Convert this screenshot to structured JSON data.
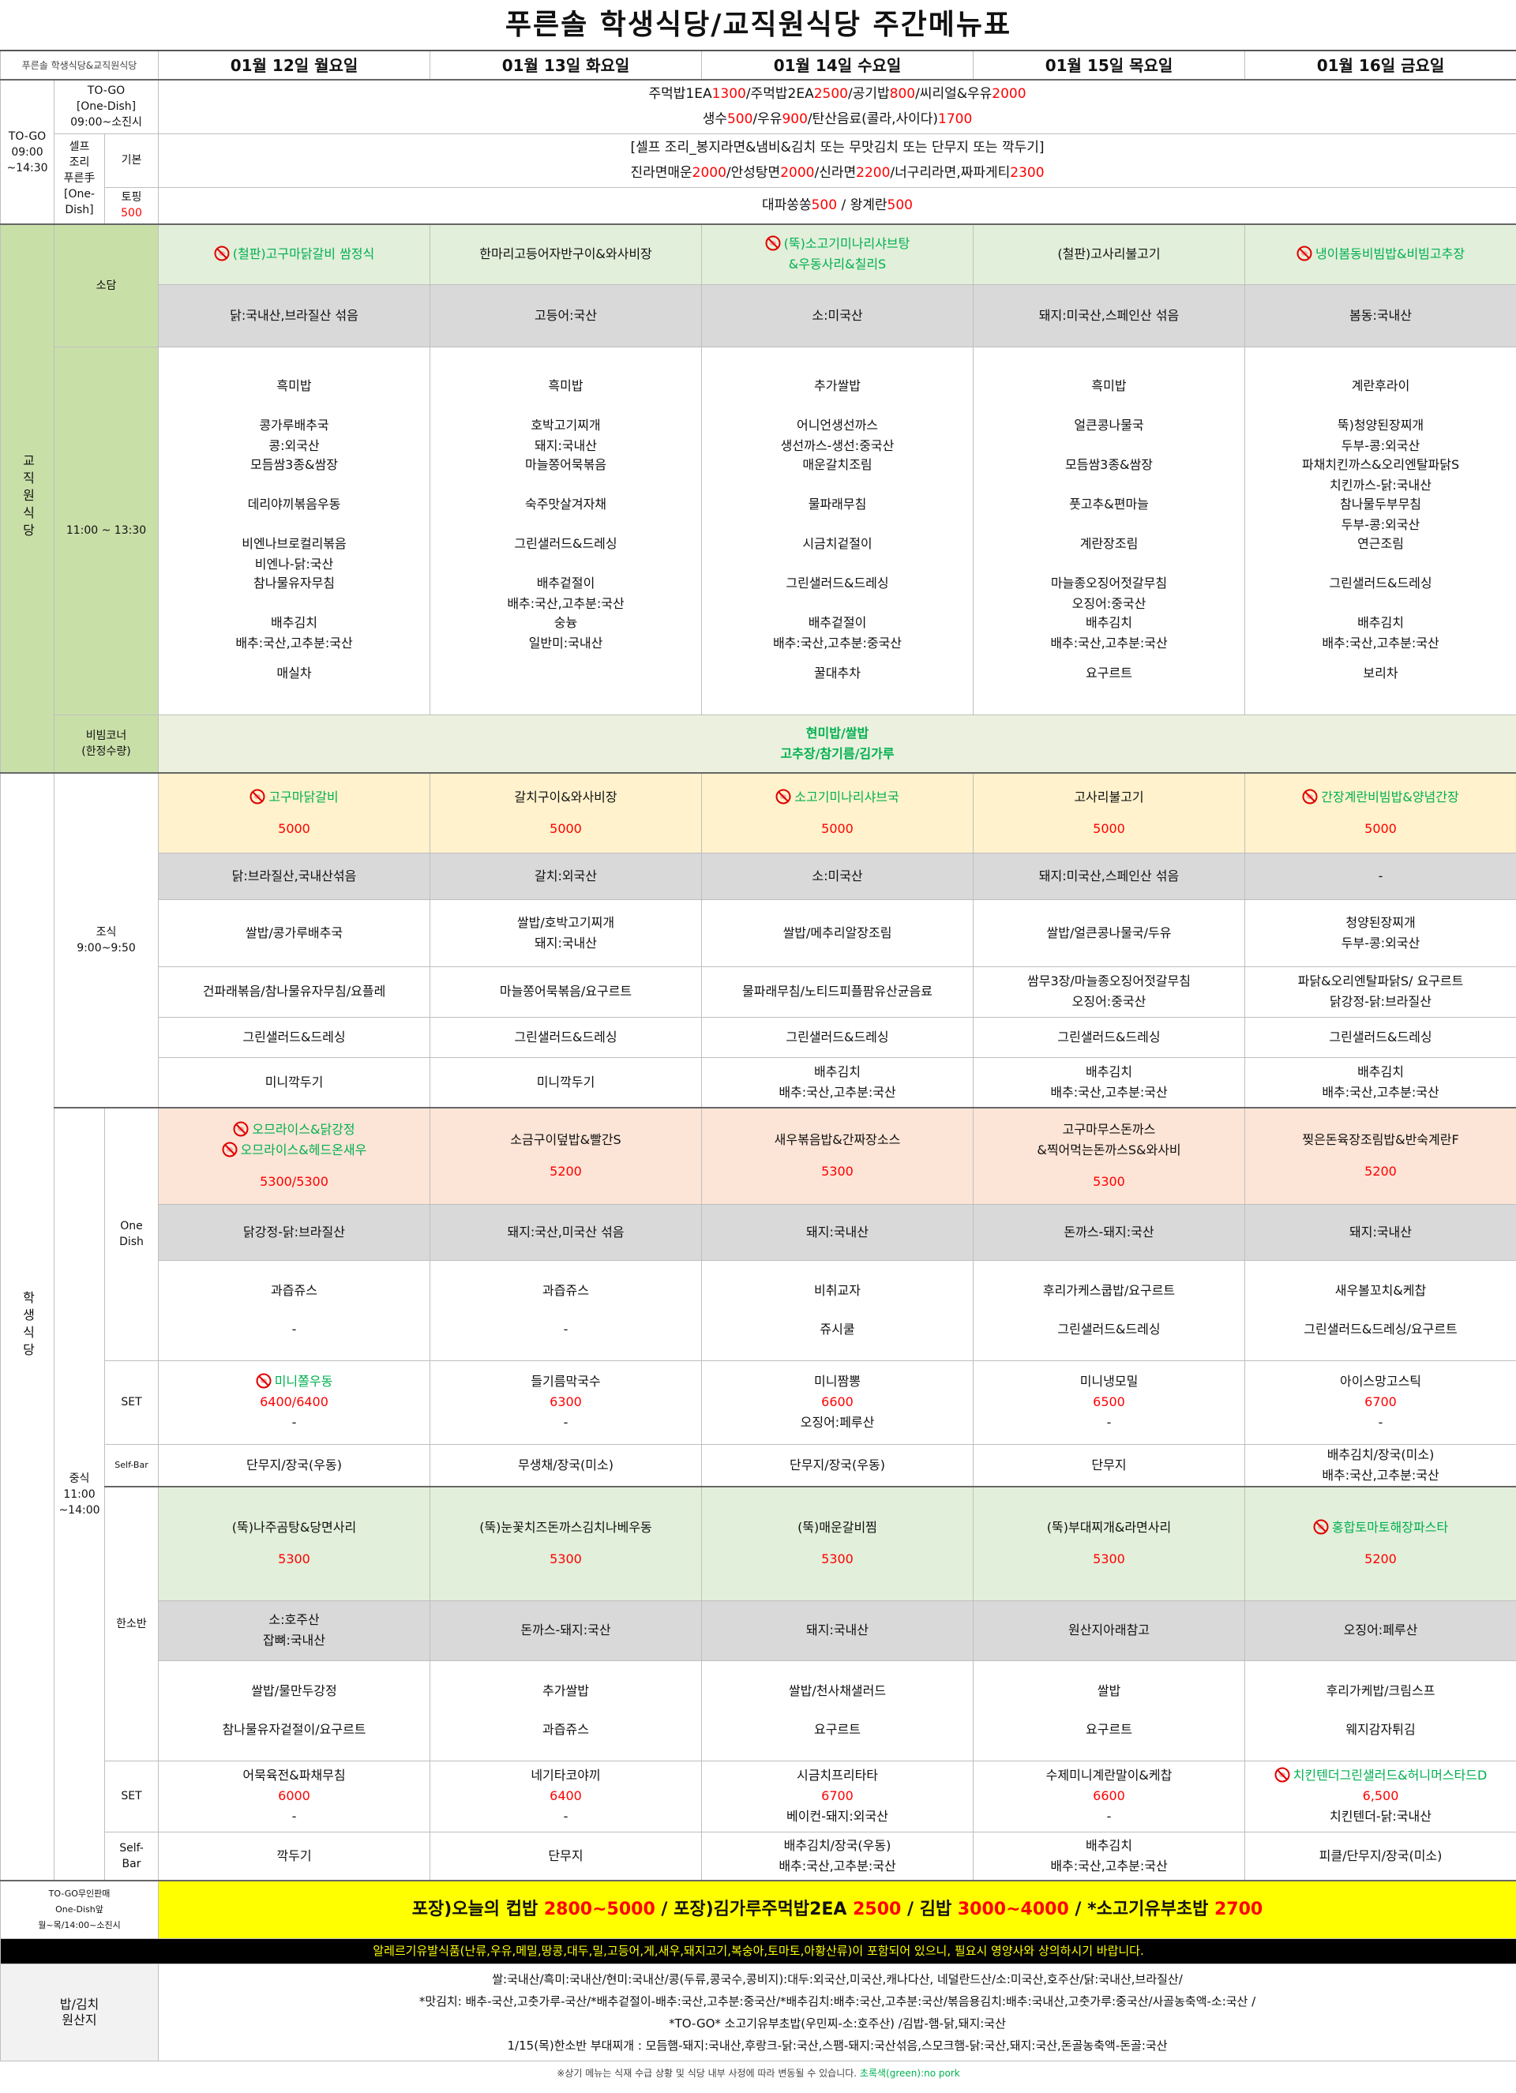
{
  "title": "푸른솔  학생식당/교직원식당  주간메뉴표",
  "header": {
    "corner": "푸른솔 학생식당&교직원식당",
    "days": [
      "01월 12일 월요일",
      "01월 13일 화요일",
      "01월 14일 수요일",
      "01월 15일 목요일",
      "01월 16일 금요일"
    ]
  },
  "togo": {
    "label": [
      "TO-GO",
      "09:00",
      "~14:30"
    ],
    "one_dish": {
      "label": [
        "TO-GO",
        "[One-Dish]",
        "09:00~소진시"
      ],
      "lines": [
        [
          "주먹밥1EA",
          {
            "text": "1300",
            "color": "#ff0000"
          },
          "/주먹밥2EA",
          {
            "text": "2500",
            "color": "#ff0000"
          },
          "/공기밥",
          {
            "text": "800",
            "color": "#ff0000"
          },
          "/씨리얼&우유",
          {
            "text": "2000",
            "color": "#ff0000"
          }
        ],
        [
          "생수",
          {
            "text": "500",
            "color": "#ff0000"
          },
          "/우유",
          {
            "text": "900",
            "color": "#ff0000"
          },
          "/탄산음료(콜라,사이다)",
          {
            "text": "1700",
            "color": "#ff0000"
          }
        ]
      ]
    },
    "self": {
      "label": [
        "셀프",
        "조리",
        "푸른手",
        "[One-",
        "Dish]"
      ],
      "basic": {
        "label": "기본",
        "lines": [
          [
            "[셀프 조리_봉지라면&냄비&김치 또는 무맛김치 또는 단무지 또는 깍두기]"
          ],
          [
            "진라면매운",
            {
              "text": "2000",
              "color": "#ff0000"
            },
            "/안성탕면",
            {
              "text": "2000",
              "color": "#ff0000"
            },
            "/신라면",
            {
              "text": "2200",
              "color": "#ff0000"
            },
            "/너구리라면,짜파게티",
            {
              "text": "2300",
              "color": "#ff0000"
            }
          ]
        ]
      },
      "topping": {
        "label": [
          "토핑",
          {
            "text": "500",
            "color": "#ff0000"
          }
        ],
        "lines": [
          [
            "대파쏭쏭",
            {
              "text": "500",
              "color": "#ff0000"
            },
            " / 왕계란",
            {
              "text": "500",
              "color": "#ff0000"
            }
          ]
        ]
      }
    }
  },
  "staff": {
    "label": "교직원식당",
    "sodam": {
      "label": "소담",
      "dishes": [
        [
          {
            "text": "(철판)고구마닭갈비 쌈정식",
            "color": "#00b050",
            "no_pork": true
          }
        ],
        [
          "한마리고등어자반구이&와사비장"
        ],
        [
          {
            "text": "(뚝)소고기미나리샤브탕",
            "color": "#00b050",
            "no_pork": true
          },
          {
            "text": "&우동사리&칠리S",
            "color": "#00b050"
          }
        ],
        [
          "(철판)고사리불고기"
        ],
        [
          {
            "text": "냉이봄동비빔밥&비빔고추장",
            "color": "#00b050",
            "no_pork": true
          }
        ]
      ],
      "origin": [
        "닭:국내산,브라질산 섞음",
        "고등어:국산",
        "소:미국산",
        "돼지:미국산,스페인산 섞음",
        "봄동:국내산"
      ]
    },
    "lunch": {
      "label": "11:00 ~ 13:30",
      "menus": [
        [
          [
            "흑미밥"
          ],
          [
            "콩가루배추국",
            "콩:외국산"
          ],
          [
            "모듬쌈3종&쌈장"
          ],
          [
            "데리야끼볶음우동"
          ],
          [
            "비엔나브로컬리볶음",
            "비엔나-닭:국산"
          ],
          [
            "참나물유자무침"
          ],
          [
            "배추김치",
            "배추:국산,고추분:국산"
          ],
          [
            "매실차"
          ]
        ],
        [
          [
            "흑미밥"
          ],
          [
            "호박고기찌개",
            "돼지:국내산"
          ],
          [
            "마늘쫑어묵볶음"
          ],
          [
            "숙주맛살겨자채"
          ],
          [
            "그린샐러드&드레싱"
          ],
          [
            "배추겉절이",
            "배추:국산,고추분:국산"
          ],
          [
            "숭늉",
            "일반미:국내산"
          ]
        ],
        [
          [
            "추가쌀밥"
          ],
          [
            "어니언생선까스",
            "생선까스-생선:중국산"
          ],
          [
            "매운갈치조림"
          ],
          [
            "물파래무침"
          ],
          [
            "시금치겉절이"
          ],
          [
            "그린샐러드&드레싱"
          ],
          [
            "배추겉절이",
            "배추:국산,고추분:중국산"
          ],
          [
            "꿀대추차"
          ]
        ],
        [
          [
            "흑미밥"
          ],
          [
            "얼큰콩나물국"
          ],
          [
            "모듬쌈3종&쌈장"
          ],
          [
            "풋고추&편마늘"
          ],
          [
            "계란장조림"
          ],
          [
            "마늘종오징어젓갈무침",
            "오징어:중국산"
          ],
          [
            "배추김치",
            "배추:국산,고추분:국산"
          ],
          [
            "요구르트"
          ]
        ],
        [
          [
            "계란후라이"
          ],
          [
            "뚝)청양된장찌개",
            "두부-콩:외국산"
          ],
          [
            "파채치킨까스&오리엔탈파닭S",
            "치킨까스-닭:국내산"
          ],
          [
            "참나물두부무침",
            "두부-콩:외국산"
          ],
          [
            "연근조림"
          ],
          [
            "그린샐러드&드레싱"
          ],
          [
            "배추김치",
            "배추:국산,고추분:국산"
          ],
          [
            "보리차"
          ]
        ]
      ]
    },
    "bibim": {
      "label": [
        "비빔코너",
        "(한정수량)"
      ],
      "lines": [
        {
          "text": "현미밥/쌀밥",
          "color": "#00b050"
        },
        {
          "text": "고추장/참기름/김가루",
          "color": "#00b050"
        }
      ]
    }
  },
  "student": {
    "label": "학생식당",
    "breakfast": {
      "label": [
        "조식",
        "9:00~9:50"
      ],
      "dishes": [
        [
          {
            "text": "고구마닭갈비",
            "color": "#00b050",
            "no_pork": true
          },
          {
            "text": "5000",
            "color": "#ff0000"
          }
        ],
        [
          "갈치구이&와사비장",
          {
            "text": "5000",
            "color": "#ff0000"
          }
        ],
        [
          {
            "text": "소고기미나리샤브국",
            "color": "#00b050",
            "no_pork": true
          },
          {
            "text": "5000",
            "color": "#ff0000"
          }
        ],
        [
          "고사리불고기",
          {
            "text": "5000",
            "color": "#ff0000"
          }
        ],
        [
          {
            "text": "간장계란비빔밥&양념간장",
            "color": "#00b050",
            "no_pork": true
          },
          {
            "text": "5000",
            "color": "#ff0000"
          }
        ]
      ],
      "origin": [
        "닭:브라질산,국내산섞음",
        "갈치:외국산",
        "소:미국산",
        "돼지:미국산,스페인산 섞음",
        "-"
      ],
      "sides": [
        [
          "쌀밥/콩가루배추국",
          [
            "쌀밥/호박고기찌개",
            "돼지:국내산"
          ],
          "쌀밥/메추리알장조림",
          "쌀밥/얼큰콩나물국/두유",
          [
            "청양된장찌개",
            "두부-콩:외국산"
          ]
        ],
        [
          "건파래볶음/참나물유자무침/요플레",
          "마늘쫑어묵볶음/요구르트",
          "물파래무침/노티드피플팜유산균음료",
          [
            "쌈무3장/마늘종오징어젓갈무침",
            "오징어:중국산"
          ],
          [
            "파닭&오리엔탈파닭S/ 요구르트",
            "닭강정-닭:브라질산"
          ]
        ],
        [
          "그린샐러드&드레싱",
          "그린샐러드&드레싱",
          "그린샐러드&드레싱",
          "그린샐러드&드레싱",
          "그린샐러드&드레싱"
        ],
        [
          "미니깍두기",
          "미니깍두기",
          [
            "배추김치",
            "배추:국산,고추분:국산"
          ],
          [
            "배추김치",
            "배추:국산,고추분:국산"
          ],
          [
            "배추김치",
            "배추:국산,고추분:국산"
          ]
        ]
      ]
    },
    "lunch": {
      "label": [
        "중식",
        "11:00",
        "~14:00"
      ],
      "one_dish": {
        "label": [
          "One",
          "Dish"
        ],
        "dishes": [
          [
            {
              "text": "오므라이스&닭강정",
              "color": "#00b050",
              "no_pork": true
            },
            {
              "text": "오므라이스&헤드온새우",
              "color": "#00b050",
              "no_pork": true
            },
            {
              "text": "5300/5300",
              "color": "#ff0000"
            }
          ],
          [
            "소금구이덮밥&빨간S",
            {
              "text": "5200",
              "color": "#ff0000"
            }
          ],
          [
            "새우볶음밥&간짜장소스",
            {
              "text": "5300",
              "color": "#ff0000"
            }
          ],
          [
            "고구마무스돈까스",
            "&찍어먹는돈까스S&와사비",
            {
              "text": "5300",
              "color": "#ff0000"
            }
          ],
          [
            "찢은돈육장조림밥&반숙계란F",
            {
              "text": "5200",
              "color": "#ff0000"
            }
          ]
        ],
        "origin": [
          "닭강정-닭:브라질산",
          "돼지:국산,미국산 섞음",
          "돼지:국내산",
          "돈까스-돼지:국산",
          "돼지:국내산"
        ],
        "sides": [
          [
            "과즙쥬스",
            "-"
          ],
          [
            "과즙쥬스",
            "-"
          ],
          [
            "비취교자",
            "쥬시쿨"
          ],
          [
            "후리가케스쿱밥/요구르트",
            "그린샐러드&드레싱"
          ],
          [
            "새우볼꼬치&케찹",
            "그린샐러드&드레싱/요구르트"
          ]
        ]
      },
      "one_dish_set": {
        "label": "SET",
        "cells": [
          [
            {
              "text": "미니쫄우동",
              "color": "#00b050",
              "no_pork": true
            },
            {
              "text": "6400/6400",
              "color": "#ff0000"
            },
            "-"
          ],
          [
            "들기름막국수",
            {
              "text": "6300",
              "color": "#ff0000"
            },
            "-"
          ],
          [
            "미니짬뽕",
            {
              "text": "6600",
              "color": "#ff0000"
            },
            "오징어:페루산"
          ],
          [
            "미니냉모밀",
            {
              "text": "6500",
              "color": "#ff0000"
            },
            "-"
          ],
          [
            "아이스망고스틱",
            {
              "text": "6700",
              "color": "#ff0000"
            },
            "-"
          ]
        ]
      },
      "one_dish_self_bar": {
        "label": "Self-Bar",
        "cells": [
          "단무지/장국(우동)",
          "무생채/장국(미소)",
          "단무지/장국(우동)",
          "단무지",
          [
            "배추김치/장국(미소)",
            "배추:국산,고추분:국산"
          ]
        ]
      },
      "hansoban": {
        "label": "한소반",
        "dishes": [
          [
            "(뚝)나주곰탕&당면사리",
            {
              "text": "5300",
              "color": "#ff0000"
            }
          ],
          [
            "(뚝)눈꽃치즈돈까스김치나베우동",
            {
              "text": "5300",
              "color": "#ff0000"
            }
          ],
          [
            "(뚝)매운갈비찜",
            {
              "text": "5300",
              "color": "#ff0000"
            }
          ],
          [
            "(뚝)부대찌개&라면사리",
            {
              "text": "5300",
              "color": "#ff0000"
            }
          ],
          [
            {
              "text": "홍합토마토해장파스타",
              "color": "#00b050",
              "no_pork": true
            },
            {
              "text": "5200",
              "color": "#ff0000"
            }
          ]
        ],
        "origin": [
          [
            "소:호주산",
            "잡뼈:국내산"
          ],
          "돈까스-돼지:국산",
          "돼지:국내산",
          "원산지아래참고",
          "오징어:페루산"
        ],
        "sides": [
          [
            "쌀밥/물만두강정",
            "참나물유자겉절이/요구르트"
          ],
          [
            "추가쌀밥",
            "과즙쥬스"
          ],
          [
            "쌀밥/천사채샐러드",
            "요구르트"
          ],
          [
            "쌀밥",
            "요구르트"
          ],
          [
            "후리가케밥/크림스프",
            "웨지감자튀김"
          ]
        ]
      },
      "hansoban_set": {
        "label": "SET",
        "cells": [
          [
            "어묵육전&파채무침",
            {
              "text": "6000",
              "color": "#ff0000"
            },
            "-"
          ],
          [
            "네기타코야끼",
            {
              "text": "6400",
              "color": "#ff0000"
            },
            "-"
          ],
          [
            "시금치프리타타",
            {
              "text": "6700",
              "color": "#ff0000"
            },
            "베이컨-돼지:외국산"
          ],
          [
            "수제미니계란말이&케찹",
            {
              "text": "6600",
              "color": "#ff0000"
            },
            "-"
          ],
          [
            {
              "text": "치킨텐더그린샐러드&허니머스타드D",
              "color": "#00b050",
              "no_pork": true
            },
            {
              "text": "6,500",
              "color": "#ff0000"
            },
            "치킨텐더-닭:국내산"
          ]
        ]
      },
      "hansoban_self_bar": {
        "label": [
          "Self-",
          "Bar"
        ],
        "cells": [
          "깍두기",
          "단무지",
          [
            "배추김치/장국(우동)",
            "배추:국산,고추분:국산"
          ],
          [
            "배추김치",
            "배추:국산,고추분:국산"
          ],
          "피클/단무지/장국(미소)"
        ]
      }
    }
  },
  "togo_unmanned": {
    "label": [
      "TO-GO무인판매",
      "One-Dish앞",
      "월~목/14:00~소진시"
    ],
    "lines": [
      [
        "포장)오늘의 컵밥 ",
        {
          "text": "2800~5000",
          "color": "#ff0000"
        },
        " / 포장)김가루주먹밥2EA ",
        {
          "text": "2500",
          "color": "#ff0000"
        },
        " / 김밥 ",
        {
          "text": "3000~4000",
          "color": "#ff0000"
        },
        " / *소고기유부초밥 ",
        {
          "text": "2700",
          "color": "#ff0000"
        }
      ]
    ]
  },
  "allergy": "알레르기유발식품(난류,우유,메밀,땅콩,대두,밀,고등어,게,새우,돼지고기,복숭아,토마토,아황산류)이 포함되어 있으니, 필요시 영양사와 상의하시기 바랍니다.",
  "origin": {
    "label": [
      "밥/김치",
      "원산지"
    ],
    "lines": [
      "쌀:국내산/흑미:국내산/현미:국내산/콩(두류,콩국수,콩비지):대두:외국산,미국산,캐나다산, 네덜란드산/소:미국산,호주산/닭:국내산,브라질산/",
      "*맛김치: 배추-국산,고춧가루-국산/*배추겉절이-배추:국산,고추분:중국산/*배추김치:배추:국산,고추분:국산/볶음용김치:배추:국내산,고춧가루:중국산/사골농축액-소:국산 /",
      "*TO-GO* 소고기유부초밥(우민찌-소:호주산) /김밥-햄-닭,돼지:국산",
      "1/15(목)한소반 부대찌개 : 모듬햄-돼지:국내산,후랑크-닭:국산,스팸-돼지:국산섞음,스모크햄-닭:국산,돼지:국산,돈골농축액-돈골:국산"
    ]
  },
  "footnote": [
    [
      "※상기 메뉴는 식재 수급 상황 및 식당 내부 사정에 따라 변동될 수 있습니다. ",
      {
        "text": "초록색(green):no pork",
        "color": "#00b050"
      }
    ]
  ]
}
